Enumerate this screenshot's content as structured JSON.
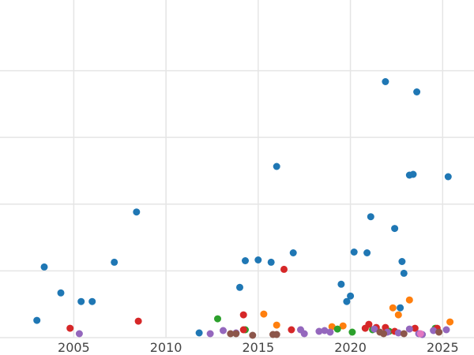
{
  "chart_data": {
    "type": "scatter",
    "title": "",
    "xlabel": "",
    "ylabel": "",
    "xlim": [
      2001,
      2026.7
    ],
    "ylim": [
      0,
      430
    ],
    "x_ticks": [
      {
        "value": 2005,
        "label": "2005"
      },
      {
        "value": 2010,
        "label": "2010"
      },
      {
        "value": 2015,
        "label": "2015"
      },
      {
        "value": 2020,
        "label": "2020"
      },
      {
        "value": 2025,
        "label": "2025"
      }
    ],
    "y_gridlines": [
      0,
      85,
      170,
      255,
      340
    ],
    "grid": true,
    "legend": "none",
    "series": [
      {
        "color": "#1f77b4",
        "points": [
          [
            2003.0,
            22
          ],
          [
            2003.4,
            90
          ],
          [
            2004.3,
            57
          ],
          [
            2005.4,
            46
          ],
          [
            2006.0,
            46
          ],
          [
            2007.2,
            96
          ],
          [
            2008.4,
            160
          ],
          [
            2011.8,
            6
          ],
          [
            2014.0,
            64
          ],
          [
            2014.3,
            98
          ],
          [
            2015.0,
            99
          ],
          [
            2015.7,
            96
          ],
          [
            2016.0,
            218
          ],
          [
            2016.9,
            108
          ],
          [
            2019.5,
            68
          ],
          [
            2019.8,
            46
          ],
          [
            2020.0,
            53
          ],
          [
            2020.2,
            109
          ],
          [
            2020.9,
            108
          ],
          [
            2021.1,
            154
          ],
          [
            2021.9,
            326
          ],
          [
            2022.4,
            139
          ],
          [
            2022.7,
            38
          ],
          [
            2022.8,
            97
          ],
          [
            2022.9,
            82
          ],
          [
            2023.2,
            207
          ],
          [
            2023.4,
            208
          ],
          [
            2023.6,
            313
          ],
          [
            2025.3,
            205
          ]
        ]
      },
      {
        "color": "#ff7f0e",
        "points": [
          [
            2015.3,
            30
          ],
          [
            2016.0,
            16
          ],
          [
            2019.0,
            14
          ],
          [
            2019.6,
            15
          ],
          [
            2022.3,
            38
          ],
          [
            2022.6,
            29
          ],
          [
            2023.2,
            48
          ],
          [
            2025.4,
            20
          ]
        ]
      },
      {
        "color": "#2ca02c",
        "points": [
          [
            2012.8,
            24
          ],
          [
            2014.3,
            10
          ],
          [
            2019.3,
            11
          ],
          [
            2020.1,
            7
          ],
          [
            2021.2,
            10
          ],
          [
            2022.1,
            8
          ],
          [
            2024.6,
            12
          ]
        ]
      },
      {
        "color": "#d62728",
        "points": [
          [
            2004.8,
            12
          ],
          [
            2008.5,
            21
          ],
          [
            2014.2,
            29
          ],
          [
            2014.2,
            10
          ],
          [
            2016.4,
            87
          ],
          [
            2016.8,
            10
          ],
          [
            2020.8,
            12
          ],
          [
            2021.0,
            17
          ],
          [
            2021.4,
            13
          ],
          [
            2021.9,
            13
          ],
          [
            2022.4,
            8
          ],
          [
            2023.5,
            12
          ],
          [
            2024.7,
            12
          ]
        ]
      },
      {
        "color": "#9467bd",
        "points": [
          [
            2005.3,
            5
          ],
          [
            2012.4,
            5
          ],
          [
            2013.1,
            9
          ],
          [
            2013.8,
            6
          ],
          [
            2017.3,
            10
          ],
          [
            2017.5,
            5
          ],
          [
            2018.3,
            8
          ],
          [
            2018.6,
            9
          ],
          [
            2018.9,
            7
          ],
          [
            2021.3,
            11
          ],
          [
            2022.0,
            7
          ],
          [
            2022.6,
            6
          ],
          [
            2023.2,
            11
          ],
          [
            2023.7,
            5
          ],
          [
            2023.9,
            4
          ],
          [
            2024.5,
            9
          ],
          [
            2025.2,
            10
          ]
        ]
      },
      {
        "color": "#8c564b",
        "points": [
          [
            2013.5,
            5
          ],
          [
            2013.8,
            5
          ],
          [
            2014.7,
            3
          ],
          [
            2015.8,
            4
          ],
          [
            2016.0,
            4
          ],
          [
            2021.6,
            7
          ],
          [
            2021.8,
            5
          ],
          [
            2022.9,
            5
          ],
          [
            2024.8,
            7
          ]
        ]
      },
      {
        "color": "#e377c2",
        "points": [
          [
            2023.8,
            5
          ]
        ]
      }
    ]
  }
}
